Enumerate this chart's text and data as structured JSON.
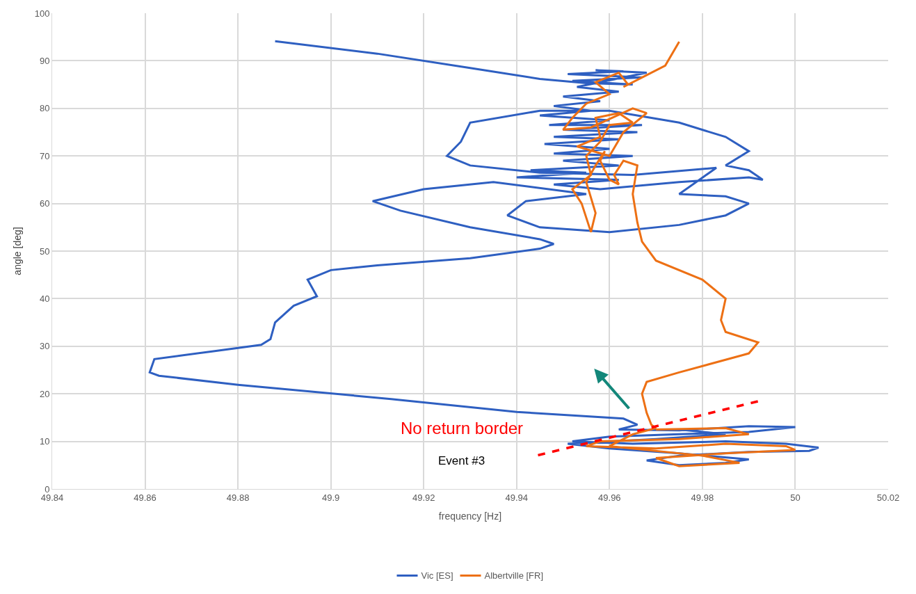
{
  "chart_data": {
    "type": "line",
    "xlabel": "frequency [Hz]",
    "ylabel": "angle [deg]",
    "xlim": [
      49.84,
      50.02
    ],
    "xticks": [
      49.84,
      49.86,
      49.88,
      49.9,
      49.92,
      49.94,
      49.96,
      49.98,
      50,
      50.02
    ],
    "ylim": [
      0,
      100
    ],
    "yticks": [
      0,
      10,
      20,
      30,
      40,
      50,
      60,
      70,
      80,
      90,
      100
    ],
    "grid": true,
    "legend": "bottom",
    "marker": "none",
    "line_style": "solid",
    "annotations": [
      "No return border",
      "Event #3"
    ],
    "series": [
      {
        "name": "Vic [ES]",
        "color": "#2e5fc1",
        "x": [
          49.888,
          49.91,
          49.93,
          49.945,
          49.955,
          49.965,
          49.952,
          49.967,
          49.951,
          49.963,
          49.957,
          49.968,
          49.953,
          49.962,
          49.95,
          49.958,
          49.948,
          49.956,
          49.945,
          49.96,
          49.947,
          49.967,
          49.95,
          49.966,
          49.948,
          49.962,
          49.946,
          49.96,
          49.948,
          49.965,
          49.95,
          49.962,
          49.943,
          49.955,
          49.94,
          49.962,
          49.948,
          49.958,
          49.975,
          49.99,
          49.993,
          49.99,
          49.985,
          49.99,
          49.985,
          49.975,
          49.96,
          49.945,
          49.93,
          49.928,
          49.925,
          49.93,
          49.945,
          49.965,
          49.983,
          49.975,
          49.985,
          49.99,
          49.985,
          49.975,
          49.96,
          49.945,
          49.938,
          49.942,
          49.955,
          49.935,
          49.92,
          49.909,
          49.915,
          49.93,
          49.945,
          49.948,
          49.945,
          49.93,
          49.91,
          49.9,
          49.895,
          49.897,
          49.892,
          49.888,
          49.887,
          49.885,
          49.875,
          49.862,
          49.861,
          49.863,
          49.88,
          49.913,
          49.94,
          49.963,
          49.966,
          49.962,
          49.975,
          49.99,
          50.0,
          49.99,
          49.975,
          49.96,
          49.952,
          49.965,
          49.985,
          49.998,
          50.005,
          50.003,
          49.99,
          49.975,
          49.968,
          49.975,
          49.985,
          49.99,
          49.975,
          49.96,
          49.951,
          49.97,
          49.985,
          49.975
        ],
        "values": [
          94.1,
          91.5,
          88.5,
          86.2,
          85.3,
          85.0,
          85.8,
          86.5,
          87.2,
          87.8,
          88.0,
          87.5,
          84.5,
          83.5,
          82.5,
          81.5,
          80.5,
          79.5,
          78.5,
          77.5,
          76.5,
          76.5,
          75.5,
          75.0,
          74.0,
          73.5,
          72.5,
          71.5,
          70.5,
          70.0,
          69.0,
          68.0,
          67.0,
          66.5,
          65.5,
          65.0,
          64.0,
          63.0,
          64.5,
          65.5,
          65,
          67,
          68,
          71,
          74,
          77,
          79.5,
          79.5,
          77,
          73,
          70,
          68,
          66.5,
          66,
          67.5,
          62,
          61.5,
          60,
          57.5,
          55.5,
          54,
          55,
          57.5,
          60.5,
          62,
          64.5,
          63,
          60.5,
          58.5,
          55,
          52.5,
          51.5,
          50.5,
          48.5,
          47,
          46,
          44,
          40.5,
          38.5,
          35,
          31.5,
          30.3,
          29,
          27.3,
          24.5,
          23.8,
          21.9,
          18.9,
          16.2,
          14.8,
          13.5,
          12.5,
          12.3,
          13.2,
          13.0,
          12,
          11.5,
          11.0,
          10.0,
          9.5,
          10,
          9.5,
          8.7,
          8.0,
          7.8,
          7.0,
          6.0,
          5.0,
          5.5,
          6.2,
          7.5,
          8.5,
          9.5,
          10.5,
          11.5,
          12.5
        ]
      },
      {
        "name": "Albertville [FR]",
        "color": "#ed7014",
        "x": [
          49.97,
          49.985,
          49.99,
          49.975,
          49.958,
          49.955,
          49.97,
          49.985,
          49.998,
          50.0,
          49.985,
          49.97,
          49.975,
          49.988,
          49.98,
          49.96,
          49.965,
          49.97,
          49.969,
          49.968,
          49.967,
          49.968,
          49.975,
          49.99,
          49.992,
          49.985,
          49.984,
          49.985,
          49.98,
          49.97,
          49.967,
          49.966,
          49.965,
          49.966,
          49.963,
          49.961,
          49.962,
          49.96,
          49.958,
          49.959,
          49.957,
          49.955,
          49.957,
          49.956,
          49.954,
          49.952,
          49.956,
          49.955,
          49.958,
          49.96,
          49.965,
          49.962,
          49.957,
          49.958,
          49.953,
          49.96,
          49.963,
          49.968,
          49.965,
          49.956,
          49.95,
          49.952,
          49.955,
          49.96,
          49.957,
          49.962,
          49.964,
          49.963,
          49.967,
          49.972,
          49.975
        ],
        "values": [
          12.5,
          12.8,
          11.5,
          10.5,
          10.0,
          9.0,
          8.5,
          9.5,
          9.0,
          8.2,
          7.5,
          6.5,
          4.8,
          5.5,
          7.0,
          9.0,
          11.5,
          12.8,
          13.5,
          16,
          20,
          22.5,
          24.5,
          28.5,
          30.8,
          33,
          35.5,
          40,
          44,
          48,
          52,
          56,
          62,
          68,
          69,
          66,
          64,
          65,
          69,
          71,
          68,
          64.5,
          58,
          54,
          60,
          63,
          66,
          70,
          73,
          76.5,
          77,
          79,
          78,
          74,
          72,
          70,
          75,
          79,
          80,
          76,
          75.5,
          78,
          81,
          83,
          85.5,
          87.5,
          85,
          84.5,
          86.5,
          89,
          94
        ]
      },
      {
        "type": "line",
        "color": "#ff0000",
        "line_style": "dashed",
        "x": [
          49.9446,
          49.9923
        ],
        "values": [
          7.1,
          18.5
        ]
      }
    ]
  }
}
